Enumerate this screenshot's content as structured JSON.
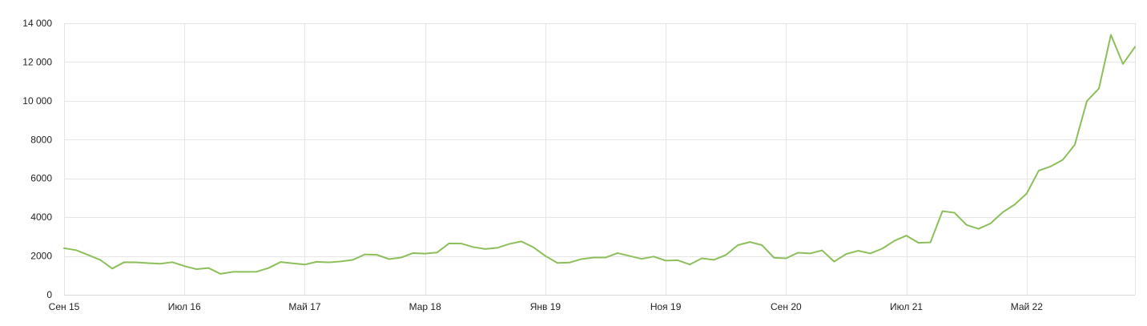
{
  "chart_data": {
    "type": "line",
    "title": "",
    "xlabel": "",
    "ylabel": "",
    "grid": true,
    "legend": "none",
    "ylim": [
      0,
      14000
    ],
    "y_ticks": [
      {
        "value": 0,
        "label": "0"
      },
      {
        "value": 2000,
        "label": "2000"
      },
      {
        "value": 4000,
        "label": "4000"
      },
      {
        "value": 6000,
        "label": "6000"
      },
      {
        "value": 8000,
        "label": "8000"
      },
      {
        "value": 10000,
        "label": "10 000"
      },
      {
        "value": 12000,
        "label": "12 000"
      },
      {
        "value": 14000,
        "label": "14 000"
      }
    ],
    "x_ticks": [
      {
        "index": 0,
        "label": "Сен 15"
      },
      {
        "index": 10,
        "label": "Июл 16"
      },
      {
        "index": 20,
        "label": "Май 17"
      },
      {
        "index": 30,
        "label": "Мар 18"
      },
      {
        "index": 40,
        "label": "Янв 19"
      },
      {
        "index": 50,
        "label": "Ноя 19"
      },
      {
        "index": 60,
        "label": "Сен 20"
      },
      {
        "index": 70,
        "label": "Июл 21"
      },
      {
        "index": 80,
        "label": "Май 22"
      }
    ],
    "series": [
      {
        "color": "#8cbf5a",
        "values": [
          2400,
          2300,
          2050,
          1800,
          1350,
          1680,
          1670,
          1630,
          1600,
          1680,
          1480,
          1320,
          1380,
          1080,
          1180,
          1180,
          1190,
          1380,
          1690,
          1620,
          1560,
          1700,
          1670,
          1720,
          1800,
          2080,
          2060,
          1840,
          1920,
          2150,
          2120,
          2180,
          2650,
          2640,
          2460,
          2360,
          2420,
          2620,
          2750,
          2450,
          2000,
          1640,
          1660,
          1840,
          1920,
          1920,
          2150,
          2000,
          1850,
          1970,
          1760,
          1780,
          1560,
          1880,
          1800,
          2050,
          2560,
          2720,
          2560,
          1910,
          1880,
          2170,
          2130,
          2290,
          1710,
          2100,
          2270,
          2130,
          2380,
          2780,
          3050,
          2680,
          2700,
          4310,
          4230,
          3600,
          3400,
          3680,
          4250,
          4650,
          5220,
          6400,
          6620,
          6960,
          7740,
          9980,
          10630,
          13400,
          11900,
          12780
        ]
      }
    ]
  }
}
